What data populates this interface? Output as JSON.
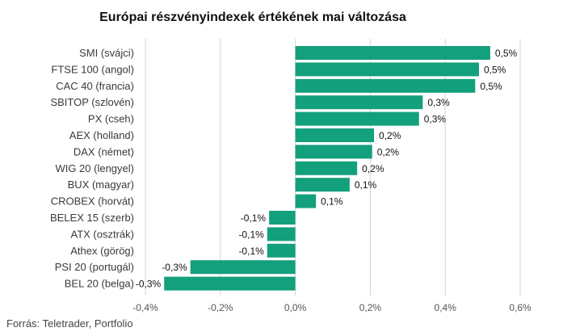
{
  "chart_data": {
    "type": "bar",
    "orientation": "horizontal",
    "title": "Európai részvényindexek értékének mai változása",
    "source": "Forrás: Teletrader, Portfolio",
    "xlim": [
      -0.4,
      0.6
    ],
    "x_ticks": [
      -0.4,
      -0.2,
      0.0,
      0.2,
      0.4,
      0.6
    ],
    "x_tick_labels": [
      "-0,4%",
      "-0,2%",
      "0,0%",
      "0,2%",
      "0,4%",
      "0,6%"
    ],
    "grid": true,
    "bar_color": "#13a07c",
    "categories": [
      "SMI (svájci)",
      "FTSE 100 (angol)",
      "CAC 40 (francia)",
      "SBITOP (szlovén)",
      "PX (cseh)",
      "AEX (holland)",
      "DAX (német)",
      "WIG 20 (lengyel)",
      "BUX (magyar)",
      "CROBEX (horvát)",
      "BELEX 15 (szerb)",
      "ATX (osztrák)",
      "Athex (görög)",
      "PSI 20 (portugál)",
      "BEL 20 (belga)"
    ],
    "values": [
      0.52,
      0.49,
      0.48,
      0.34,
      0.33,
      0.21,
      0.205,
      0.165,
      0.145,
      0.055,
      -0.07,
      -0.075,
      -0.075,
      -0.28,
      -0.35
    ],
    "value_labels": [
      "0,5%",
      "0,5%",
      "0,5%",
      "0,3%",
      "0,3%",
      "0,2%",
      "0,2%",
      "0,2%",
      "0,1%",
      "0,1%",
      "-0,1%",
      "-0,1%",
      "-0,1%",
      "-0,3%",
      "-0,3%"
    ]
  }
}
